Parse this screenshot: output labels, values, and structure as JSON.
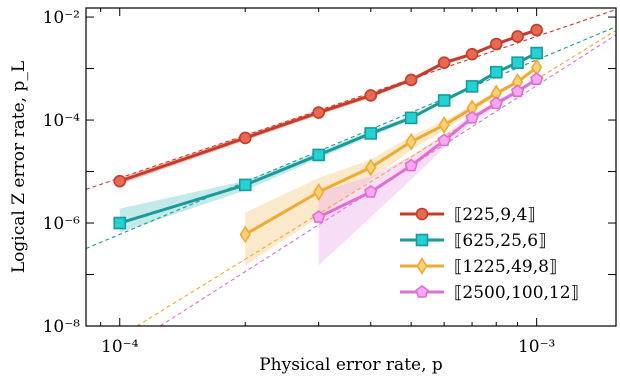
{
  "chart_data": {
    "type": "line",
    "title": "",
    "xlabel": "Physical error rate, p",
    "ylabel": "Logical Z error rate, p_L",
    "x_scale": "log",
    "y_scale": "log",
    "xlim": [
      8.3e-05,
      0.00155
    ],
    "ylim": [
      1e-08,
      0.015
    ],
    "x_ticks": [
      0.0001,
      0.001
    ],
    "x_tick_labels": [
      "10⁻⁴",
      "10⁻³"
    ],
    "y_ticks": [
      1e-08,
      1e-06,
      0.0001,
      0.01
    ],
    "y_tick_labels": [
      "10⁻⁸",
      "10⁻⁶",
      "10⁻⁴",
      "10⁻²"
    ],
    "legend_position": "bottom-right",
    "series": [
      {
        "name": "⟦225,9,4⟧",
        "color": "#c83a2a",
        "fill": "#e07060",
        "marker_fill": "#e76a50",
        "marker": "circle",
        "x": [
          0.0001,
          0.0002,
          0.0003,
          0.0004,
          0.0005,
          0.0006,
          0.0007,
          0.0008,
          0.0009,
          0.001
        ],
        "y": [
          6.5e-06,
          4.5e-05,
          0.00014,
          0.0003,
          0.0006,
          0.0013,
          0.0019,
          0.003,
          0.0042,
          0.0056
        ],
        "band_low": [
          5.7e-06,
          4e-05,
          0.000125,
          0.00027,
          0.00055,
          0.00118,
          0.00175,
          0.0028,
          0.0039,
          0.0052
        ],
        "band_high": [
          7.4e-06,
          5.1e-05,
          0.000156,
          0.00033,
          0.00066,
          0.00142,
          0.00205,
          0.0032,
          0.0045,
          0.006
        ],
        "fit_x": [
          8.3e-05,
          0.00155
        ],
        "fit_y": [
          4.5e-06,
          0.014
        ]
      },
      {
        "name": "⟦625,25,6⟧",
        "color": "#1a9a9a",
        "fill": "#7ccfcf",
        "marker_fill": "#22d3d3",
        "marker": "square",
        "x": [
          0.0001,
          0.0002,
          0.0003,
          0.0004,
          0.0005,
          0.0006,
          0.0007,
          0.0008,
          0.0009,
          0.001
        ],
        "y": [
          1e-06,
          5.5e-06,
          2.1e-05,
          5.5e-05,
          0.00011,
          0.00024,
          0.00045,
          0.00085,
          0.0013,
          0.002
        ],
        "band_low": [
          6.5e-07,
          4.3e-06,
          1.8e-05,
          4.8e-05,
          0.0001,
          0.00022,
          0.00041,
          0.00079,
          0.00121,
          0.00188
        ],
        "band_high": [
          1.9e-06,
          6.6e-06,
          2.4e-05,
          6.3e-05,
          0.00012,
          0.00026,
          0.00049,
          0.00091,
          0.0014,
          0.00212
        ],
        "fit_x": [
          8.3e-05,
          0.00155
        ],
        "fit_y": [
          3.2e-07,
          0.0065
        ]
      },
      {
        "name": "⟦1225,49,8⟧",
        "color": "#eeaa33",
        "fill": "#f6cf8f",
        "marker_fill": "#fcd078",
        "marker": "diamond",
        "x": [
          0.0002,
          0.0003,
          0.0004,
          0.0005,
          0.0006,
          0.0007,
          0.0008,
          0.0009,
          0.001
        ],
        "y": [
          6e-07,
          4e-06,
          1.2e-05,
          3.8e-05,
          8e-05,
          0.00017,
          0.00033,
          0.00055,
          0.00105
        ],
        "band_low": [
          1.5e-07,
          1.3e-06,
          7e-06,
          2.6e-05,
          6.3e-05,
          0.000145,
          0.00029,
          0.0005,
          0.00097
        ],
        "band_high": [
          1.6e-06,
          7.5e-06,
          1.7e-05,
          4.9e-05,
          9.6e-05,
          0.000195,
          0.00037,
          0.0006,
          0.00114
        ],
        "fit_x": [
          0.00011,
          0.00155
        ],
        "fit_y": [
          1e-08,
          0.0055
        ]
      },
      {
        "name": "⟦2500,100,12⟧",
        "color": "#e070d0",
        "fill": "#f0b4ec",
        "marker_fill": "#f8a8f0",
        "marker": "pentagon",
        "x": [
          0.0003,
          0.0004,
          0.0005,
          0.0006,
          0.0007,
          0.0008,
          0.0009,
          0.001
        ],
        "y": [
          1.3e-06,
          4e-06,
          1.3e-05,
          4e-05,
          0.00011,
          0.00021,
          0.00036,
          0.00062
        ],
        "band_low": [
          1.5e-07,
          1.3e-06,
          7e-06,
          2.9e-05,
          9e-05,
          0.00018,
          0.00032,
          0.00057
        ],
        "band_high": [
          4e-06,
          8e-06,
          2e-05,
          5.2e-05,
          0.00013,
          0.00024,
          0.0004,
          0.00068
        ],
        "fit_x": [
          0.000125,
          0.00155
        ],
        "fit_y": [
          1e-08,
          0.0045
        ]
      }
    ]
  }
}
